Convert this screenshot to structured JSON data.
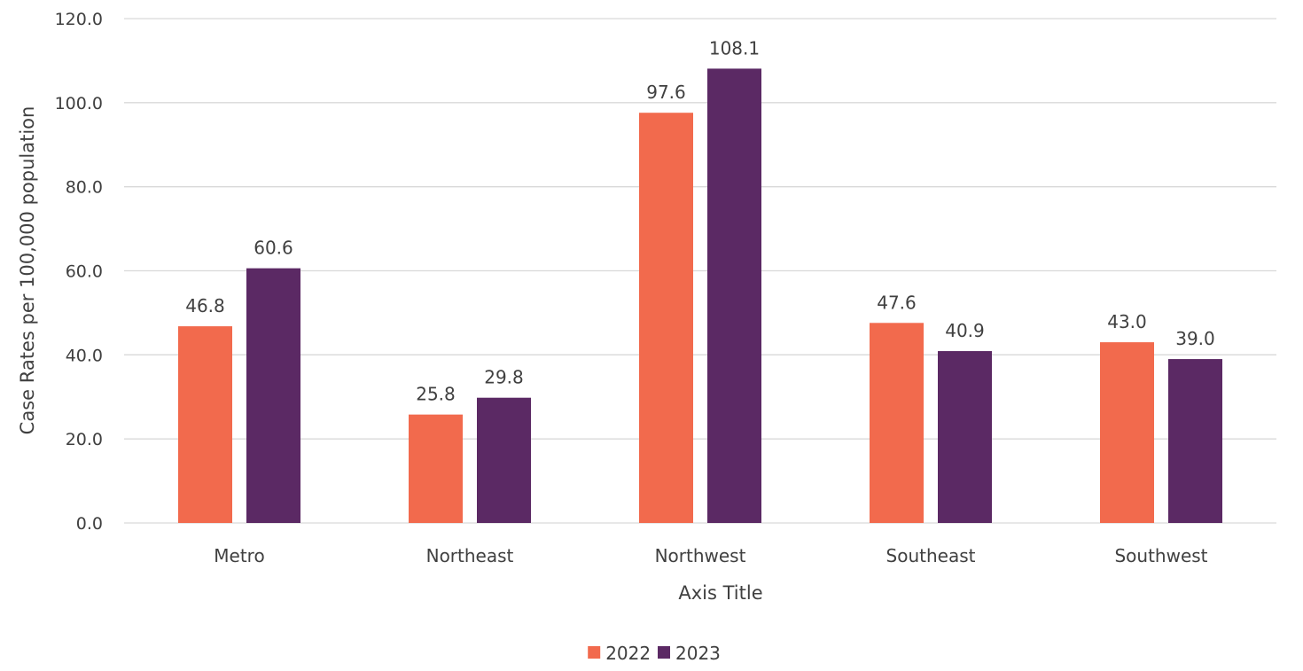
{
  "chart_data": {
    "type": "bar",
    "title": "",
    "xlabel": "Axis Title",
    "ylabel": "Case Rates per 100,000 population",
    "categories": [
      "Metro",
      "Northeast",
      "Northwest",
      "Southeast",
      "Southwest"
    ],
    "series": [
      {
        "name": "2022",
        "color": "#f26a4d",
        "values": [
          46.8,
          25.8,
          97.6,
          47.6,
          43.0
        ],
        "labels": [
          "46.8",
          "25.8",
          "97.6",
          "47.6",
          "43.0"
        ]
      },
      {
        "name": "2023",
        "color": "#5b2964",
        "values": [
          60.6,
          29.8,
          108.1,
          40.9,
          39.0
        ],
        "labels": [
          "60.6",
          "29.8",
          "108.1",
          "40.9",
          "39.0"
        ]
      }
    ],
    "ylim": [
      0,
      120
    ],
    "yticks": [
      "0.0",
      "20.0",
      "40.0",
      "60.0",
      "80.0",
      "100.0",
      "120.0"
    ],
    "grid": true,
    "legend_position": "bottom"
  }
}
